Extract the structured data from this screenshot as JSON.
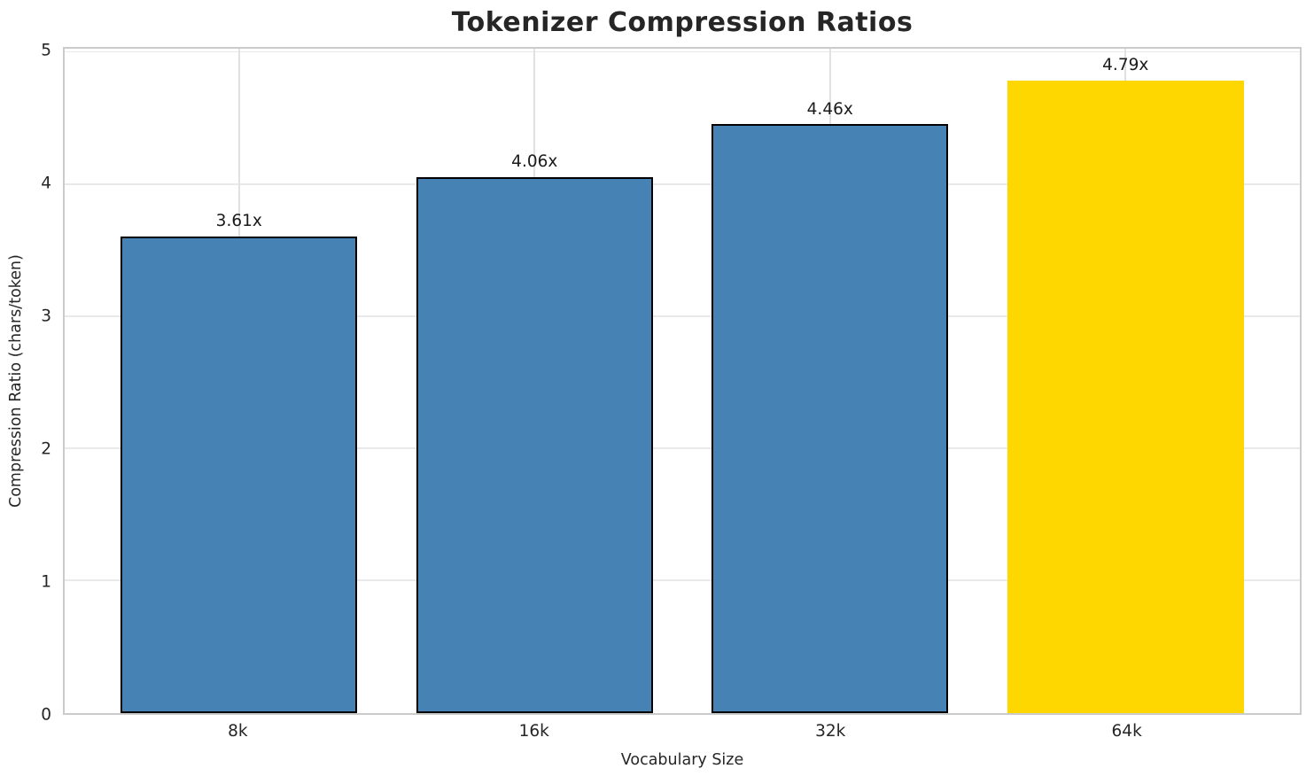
{
  "chart_data": {
    "type": "bar",
    "title": "Tokenizer Compression Ratios",
    "xlabel": "Vocabulary Size",
    "ylabel": "Compression Ratio (chars/token)",
    "categories": [
      "8k",
      "16k",
      "32k",
      "64k"
    ],
    "values": [
      3.61,
      4.06,
      4.46,
      4.79
    ],
    "bar_labels": [
      "3.61x",
      "4.06x",
      "4.46x",
      "4.79x"
    ],
    "ylim": [
      0,
      5
    ],
    "yticks": [
      0,
      1,
      2,
      3,
      4,
      5
    ],
    "bar_colors": [
      "#4682B4",
      "#4682B4",
      "#4682B4",
      "#FFD700"
    ],
    "bar_edge_colors": [
      "#000000",
      "#000000",
      "#000000",
      "none"
    ],
    "base_color": "#4682B4",
    "highlight_color": "#FFD700",
    "grid": true,
    "grid_color": "#e9e9e9",
    "spine_color": "#cbcbcb",
    "legend_position": "none",
    "bar_width_fraction": 0.8
  }
}
